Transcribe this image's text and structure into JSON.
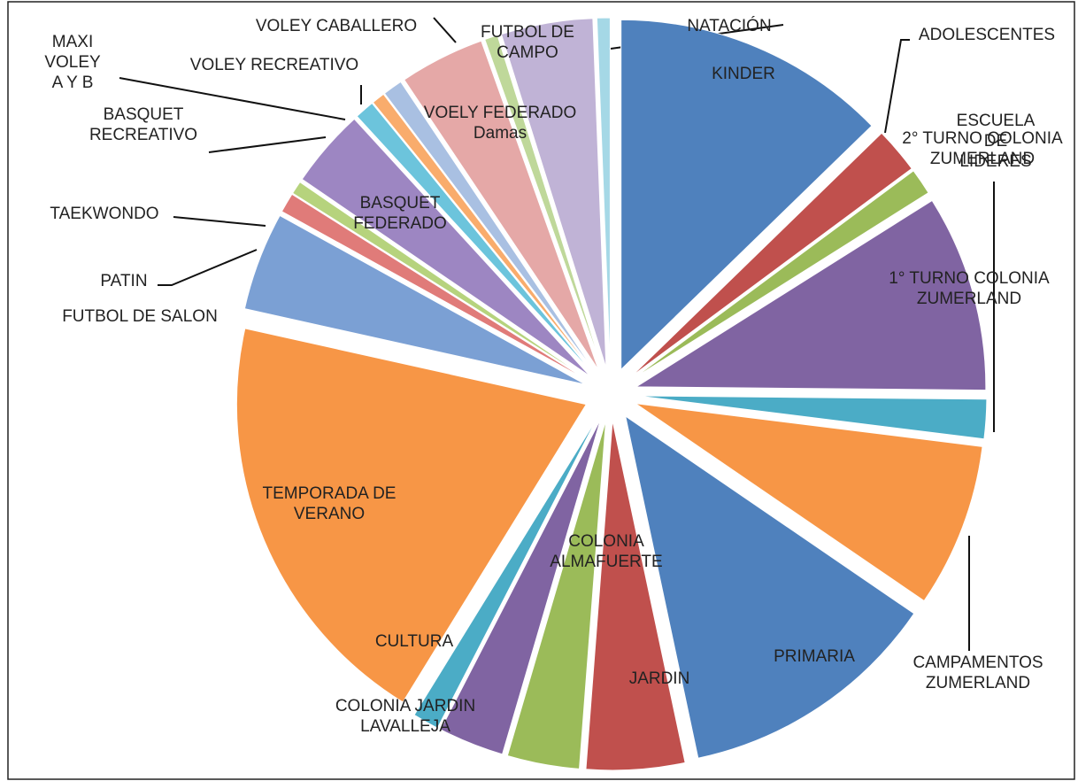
{
  "chart_data": {
    "type": "pie",
    "categories": [
      "KINDER",
      "ADOLESCENTES",
      "ESCUELA DE LIDERES",
      "1° TURNO COLONIA ZUMERLAND",
      "2° TURNO COLONIA ZUMERLAND",
      "CAMPAMENTOS ZUMERLAND",
      "PRIMARIA",
      "JARDIN",
      "COLONIA ALMAFUERTE",
      "COLONIA JARDIN LAVALLEJA",
      "CULTURA",
      "TEMPORADA DE VERANO",
      "FUTBOL DE SALON",
      "PATIN",
      "TAEKWONDO",
      "BASQUET FEDERADO",
      "BASQUET RECREATIVO",
      "MAXI VOLEY A Y B",
      "VOLEY RECREATIVO",
      "VOELY FEDERADO Damas",
      "VOLEY CABALLERO",
      "FUTBOL DE CAMPO",
      "NATACIÓN"
    ],
    "values": [
      42,
      7,
      4,
      30,
      6,
      25,
      40,
      15,
      11,
      10,
      4,
      65,
      15,
      3,
      2,
      12,
      3,
      2,
      3,
      13,
      2,
      14,
      2
    ],
    "colors": [
      "#4f81bd",
      "#c0504d",
      "#9bbb59",
      "#8064a2",
      "#4bacc6",
      "#f79646",
      "#4f81bd",
      "#c0504d",
      "#9bbb59",
      "#8064a2",
      "#4bacc6",
      "#f79646",
      "#7ba0d4",
      "#e07b79",
      "#b6d37d",
      "#9d86c2",
      "#6cc4dc",
      "#f9ac6c",
      "#a9c0e2",
      "#e5a8a7",
      "#bfd89a",
      "#c0b3d6",
      "#a5d8e6"
    ]
  }
}
